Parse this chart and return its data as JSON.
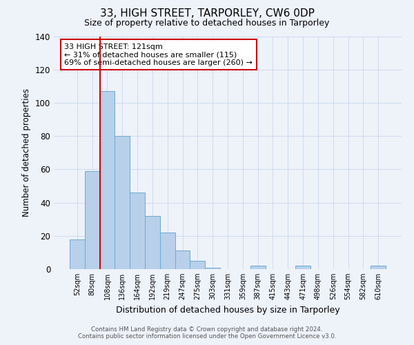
{
  "title1": "33, HIGH STREET, TARPORLEY, CW6 0DP",
  "title2": "Size of property relative to detached houses in Tarporley",
  "xlabel": "Distribution of detached houses by size in Tarporley",
  "ylabel": "Number of detached properties",
  "bin_labels": [
    "52sqm",
    "80sqm",
    "108sqm",
    "136sqm",
    "164sqm",
    "192sqm",
    "219sqm",
    "247sqm",
    "275sqm",
    "303sqm",
    "331sqm",
    "359sqm",
    "387sqm",
    "415sqm",
    "443sqm",
    "471sqm",
    "498sqm",
    "526sqm",
    "554sqm",
    "582sqm",
    "610sqm"
  ],
  "bar_heights": [
    18,
    59,
    107,
    80,
    46,
    32,
    22,
    11,
    5,
    1,
    0,
    0,
    2,
    0,
    0,
    2,
    0,
    0,
    0,
    0,
    2
  ],
  "bar_color": "#b8d0ea",
  "bar_edge_color": "#6aabd2",
  "vline_color": "#dd0000",
  "annotation_title": "33 HIGH STREET: 121sqm",
  "annotation_line1": "← 31% of detached houses are smaller (115)",
  "annotation_line2": "69% of semi-detached houses are larger (260) →",
  "annotation_box_color": "#ffffff",
  "annotation_box_edge": "#cc0000",
  "ylim": [
    0,
    140
  ],
  "yticks": [
    0,
    20,
    40,
    60,
    80,
    100,
    120,
    140
  ],
  "footer1": "Contains HM Land Registry data © Crown copyright and database right 2024.",
  "footer2": "Contains public sector information licensed under the Open Government Licence v3.0.",
  "bg_color": "#eef2f9",
  "title1_fontsize": 11,
  "title2_fontsize": 9,
  "ylabel_fontsize": 8.5,
  "xlabel_fontsize": 9,
  "vline_x_index": 2
}
